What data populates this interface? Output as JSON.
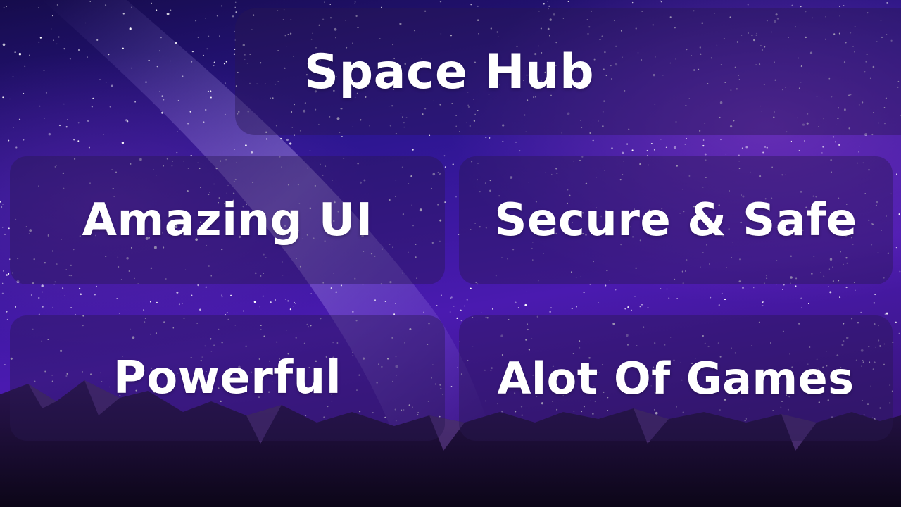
{
  "header": {
    "title": "Space Hub"
  },
  "features": [
    {
      "label": "Amazing UI"
    },
    {
      "label": "Secure & Safe"
    },
    {
      "label": "Powerful"
    },
    {
      "label": "Alot Of Games"
    }
  ],
  "colors": {
    "sky_top": "#1b0f56",
    "sky_mid": "#3a1a9a",
    "sky_bottom": "#5b1fb8",
    "milky_way": "#c8b0ff",
    "mountains": "#140a2a",
    "panel_fill": "rgba(40, 25, 80, 0.42)",
    "text": "#ffffff"
  }
}
